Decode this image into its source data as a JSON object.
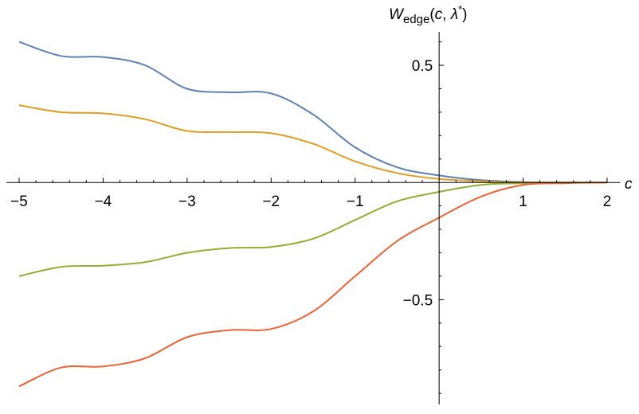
{
  "chart_data": {
    "type": "line",
    "title": "",
    "xlabel": "c",
    "ylabel": {
      "main": "W",
      "subscript": "edge",
      "args_open": "(",
      "arg1": "c",
      "sep": ", ",
      "arg2": "λ",
      "sup": "*",
      "args_close": ")"
    },
    "xlim": [
      -5,
      2
    ],
    "ylim": [
      -0.92,
      0.67
    ],
    "x_ticks": [
      -5,
      -4,
      -3,
      -2,
      -1,
      1,
      2
    ],
    "x_tick_labels": [
      "−5",
      "−4",
      "−3",
      "−2",
      "−1",
      "1",
      "2"
    ],
    "y_ticks": [
      0.5,
      -0.5
    ],
    "y_tick_labels": [
      "0.5",
      "−0.5"
    ],
    "grid": false,
    "legend": "none",
    "x": [
      -5,
      -4.5,
      -4,
      -3.5,
      -3,
      -2.5,
      -2,
      -1.5,
      -1,
      -0.5,
      0,
      0.5,
      1,
      1.5,
      2
    ],
    "series": [
      {
        "color": "#5E81B5",
        "values": [
          0.6,
          0.54,
          0.535,
          0.5,
          0.4,
          0.385,
          0.38,
          0.29,
          0.15,
          0.065,
          0.03,
          0.01,
          0.002,
          0.0,
          0.0
        ]
      },
      {
        "color": "#E19C24",
        "values": [
          0.33,
          0.3,
          0.295,
          0.27,
          0.22,
          0.215,
          0.21,
          0.165,
          0.09,
          0.04,
          0.015,
          0.005,
          0.001,
          0.0,
          0.0
        ]
      },
      {
        "color": "#8FB032",
        "values": [
          -0.4,
          -0.36,
          -0.355,
          -0.34,
          -0.3,
          -0.28,
          -0.275,
          -0.24,
          -0.16,
          -0.08,
          -0.04,
          -0.01,
          -0.003,
          0.0,
          0.0
        ]
      },
      {
        "color": "#EB6235",
        "values": [
          -0.87,
          -0.79,
          -0.785,
          -0.75,
          -0.66,
          -0.63,
          -0.625,
          -0.55,
          -0.4,
          -0.25,
          -0.15,
          -0.06,
          -0.01,
          -0.003,
          0.0
        ]
      }
    ]
  }
}
